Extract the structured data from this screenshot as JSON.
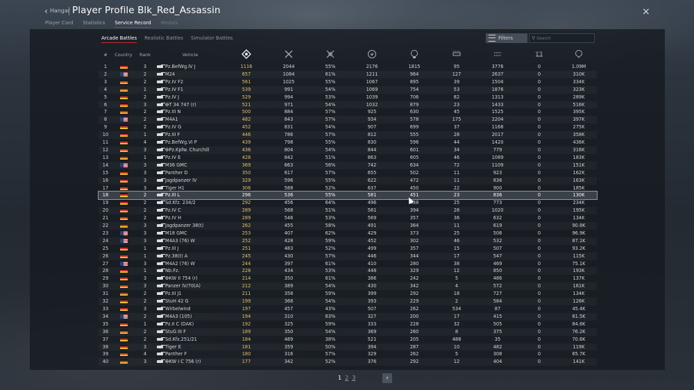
{
  "header": {
    "back_label": "Hangar",
    "title": "Player Profile Blk_Red_Assassin",
    "close_glyph": "×"
  },
  "tabs": [
    {
      "label": "Player Card",
      "state": "normal"
    },
    {
      "label": "Statistics",
      "state": "normal"
    },
    {
      "label": "Service Record",
      "state": "active"
    },
    {
      "label": "Medals",
      "state": "dim"
    }
  ],
  "subtabs": [
    {
      "label": "Arcade Battles",
      "state": "active"
    },
    {
      "label": "Realistic Battles",
      "state": "normal"
    },
    {
      "label": "Simulator Battles",
      "state": "normal"
    }
  ],
  "toolbar": {
    "filters_label": "Filters",
    "search_placeholder": "Search"
  },
  "table": {
    "headers": {
      "num": "#",
      "country": "Country",
      "rank": "Rank",
      "vehicle": "Vehicle"
    },
    "icon_columns": [
      "score-icon",
      "battles-icon",
      "victories-percent-icon",
      "respawns-icon",
      "deaths-icon",
      "ground-kills-icon",
      "air-kills-icon",
      "naval-kills-icon",
      "research-points-icon"
    ],
    "selected_row": 18,
    "rows": [
      {
        "n": "1",
        "c": "de",
        "r": "3",
        "v": "Pz.BefWg.IV J",
        "s": "1116",
        "b": "2044",
        "w": "55%",
        "res": "2176",
        "d": "1815",
        "a": "95",
        "g": "3776",
        "nv": "0",
        "rp": "1.09M"
      },
      {
        "n": "2",
        "c": "us",
        "r": "2",
        "v": "M24",
        "s": "657",
        "b": "1084",
        "w": "61%",
        "res": "1211",
        "d": "964",
        "a": "127",
        "g": "2637",
        "nv": "0",
        "rp": "310K"
      },
      {
        "n": "3",
        "c": "de",
        "r": "2",
        "v": "Pz.IV F2",
        "s": "561",
        "b": "1025",
        "w": "55%",
        "res": "1067",
        "d": "895",
        "a": "39",
        "g": "1504",
        "nv": "0",
        "rp": "334K"
      },
      {
        "n": "4",
        "c": "de",
        "r": "1",
        "v": "Pz.IV F1",
        "s": "539",
        "b": "991",
        "w": "54%",
        "res": "1069",
        "d": "754",
        "a": "53",
        "g": "1876",
        "nv": "0",
        "rp": "323K"
      },
      {
        "n": "5",
        "c": "de",
        "r": "2",
        "v": "Pz.IV J",
        "s": "529",
        "b": "994",
        "w": "53%",
        "res": "1039",
        "d": "706",
        "a": "82",
        "g": "1313",
        "nv": "0",
        "rp": "289K"
      },
      {
        "n": "6",
        "c": "de",
        "r": "3",
        "v": "✠T 34 747 (r)",
        "s": "521",
        "b": "971",
        "w": "54%",
        "res": "1032",
        "d": "879",
        "a": "23",
        "g": "1433",
        "nv": "0",
        "rp": "516K"
      },
      {
        "n": "7",
        "c": "de",
        "r": "2",
        "v": "Pz.III N",
        "s": "500",
        "b": "884",
        "w": "57%",
        "res": "925",
        "d": "630",
        "a": "45",
        "g": "1525",
        "nv": "0",
        "rp": "395K"
      },
      {
        "n": "8",
        "c": "us",
        "r": "2",
        "v": "M4A1",
        "s": "482",
        "b": "843",
        "w": "57%",
        "res": "934",
        "d": "578",
        "a": "175",
        "g": "2204",
        "nv": "0",
        "rp": "397K"
      },
      {
        "n": "9",
        "c": "de",
        "r": "2",
        "v": "Pz.IV G",
        "s": "452",
        "b": "831",
        "w": "54%",
        "res": "907",
        "d": "699",
        "a": "37",
        "g": "1168",
        "nv": "0",
        "rp": "275K"
      },
      {
        "n": "10",
        "c": "de",
        "r": "1",
        "v": "Pz.III F",
        "s": "446",
        "b": "786",
        "w": "57%",
        "res": "812",
        "d": "555",
        "a": "28",
        "g": "2017",
        "nv": "0",
        "rp": "358K"
      },
      {
        "n": "11",
        "c": "de",
        "r": "4",
        "v": "Pz.BefWg.VI P",
        "s": "439",
        "b": "798",
        "w": "55%",
        "res": "830",
        "d": "596",
        "a": "44",
        "g": "1420",
        "nv": "0",
        "rp": "436K"
      },
      {
        "n": "12",
        "c": "de",
        "r": "3",
        "v": "✠Pz.Kpfw. Churchill",
        "s": "436",
        "b": "804",
        "w": "54%",
        "res": "844",
        "d": "601",
        "a": "34",
        "g": "779",
        "nv": "0",
        "rp": "316K"
      },
      {
        "n": "13",
        "c": "de",
        "r": "1",
        "v": "Pz.IV E",
        "s": "428",
        "b": "842",
        "w": "51%",
        "res": "863",
        "d": "605",
        "a": "46",
        "g": "1089",
        "nv": "0",
        "rp": "183K"
      },
      {
        "n": "14",
        "c": "us",
        "r": "3",
        "v": "M36 GMC",
        "s": "369",
        "b": "663",
        "w": "56%",
        "res": "742",
        "d": "634",
        "a": "72",
        "g": "1109",
        "nv": "0",
        "rp": "151K"
      },
      {
        "n": "15",
        "c": "de",
        "r": "3",
        "v": "Panther D",
        "s": "350",
        "b": "617",
        "w": "57%",
        "res": "655",
        "d": "502",
        "a": "11",
        "g": "923",
        "nv": "0",
        "rp": "162K"
      },
      {
        "n": "16",
        "c": "de",
        "r": "3",
        "v": "Jagdpanzer IV",
        "s": "329",
        "b": "596",
        "w": "55%",
        "res": "622",
        "d": "472",
        "a": "11",
        "g": "836",
        "nv": "0",
        "rp": "163K"
      },
      {
        "n": "17",
        "c": "de",
        "r": "3",
        "v": "Tiger H1",
        "s": "306",
        "b": "588",
        "w": "52%",
        "res": "637",
        "d": "450",
        "a": "22",
        "g": "900",
        "nv": "0",
        "rp": "185K"
      },
      {
        "n": "18",
        "c": "de",
        "r": "2",
        "v": "Pz.III L",
        "s": "296",
        "b": "536",
        "w": "55%",
        "res": "581",
        "d": "451",
        "a": "23",
        "g": "836",
        "nv": "0",
        "rp": "130K"
      },
      {
        "n": "19",
        "c": "de",
        "r": "2",
        "v": "Sd.Kfz. 234/2",
        "s": "292",
        "b": "456",
        "w": "64%",
        "res": "496",
        "d": "438",
        "a": "25",
        "g": "773",
        "nv": "0",
        "rp": "234K"
      },
      {
        "n": "20",
        "c": "de",
        "r": "2",
        "v": "Pz.IV C",
        "s": "289",
        "b": "568",
        "w": "51%",
        "res": "581",
        "d": "394",
        "a": "26",
        "g": "1020",
        "nv": "0",
        "rp": "195K"
      },
      {
        "n": "21",
        "c": "de",
        "r": "2",
        "v": "Pz.IV H",
        "s": "289",
        "b": "546",
        "w": "53%",
        "res": "569",
        "d": "357",
        "a": "36",
        "g": "632",
        "nv": "0",
        "rp": "134K"
      },
      {
        "n": "22",
        "c": "de",
        "r": "3",
        "v": "Jagdpanzer 38(t)",
        "s": "262",
        "b": "455",
        "w": "58%",
        "res": "491",
        "d": "364",
        "a": "11",
        "g": "619",
        "nv": "0",
        "rp": "90.8K"
      },
      {
        "n": "23",
        "c": "us",
        "r": "3",
        "v": "M18 GMC",
        "s": "253",
        "b": "407",
        "w": "62%",
        "res": "429",
        "d": "373",
        "a": "25",
        "g": "506",
        "nv": "0",
        "rp": "96.9K"
      },
      {
        "n": "24",
        "c": "us",
        "r": "3",
        "v": "M4A3 (76) W",
        "s": "252",
        "b": "428",
        "w": "59%",
        "res": "452",
        "d": "302",
        "a": "46",
        "g": "532",
        "nv": "0",
        "rp": "87.1K"
      },
      {
        "n": "25",
        "c": "de",
        "r": "1",
        "v": "Pz.III J",
        "s": "251",
        "b": "483",
        "w": "52%",
        "res": "499",
        "d": "357",
        "a": "15",
        "g": "507",
        "nv": "0",
        "rp": "93.2K"
      },
      {
        "n": "26",
        "c": "de",
        "r": "1",
        "v": "Pz.38(t) A",
        "s": "245",
        "b": "430",
        "w": "57%",
        "res": "446",
        "d": "344",
        "a": "17",
        "g": "547",
        "nv": "0",
        "rp": "115K"
      },
      {
        "n": "27",
        "c": "us",
        "r": "3",
        "v": "M4A2 (76) W",
        "s": "244",
        "b": "397",
        "w": "61%",
        "res": "410",
        "d": "280",
        "a": "38",
        "g": "469",
        "nv": "0",
        "rp": "75.1K"
      },
      {
        "n": "28",
        "c": "de",
        "r": "1",
        "v": "Nb.Fz.",
        "s": "228",
        "b": "434",
        "w": "53%",
        "res": "448",
        "d": "329",
        "a": "12",
        "g": "850",
        "nv": "0",
        "rp": "193K"
      },
      {
        "n": "29",
        "c": "de",
        "r": "3",
        "v": "✠KW II 754 (r)",
        "s": "214",
        "b": "350",
        "w": "61%",
        "res": "386",
        "d": "242",
        "a": "5",
        "g": "486",
        "nv": "0",
        "rp": "137K"
      },
      {
        "n": "30",
        "c": "de",
        "r": "3",
        "v": "Panzer IV/70(A)",
        "s": "212",
        "b": "389",
        "w": "54%",
        "res": "430",
        "d": "342",
        "a": "4",
        "g": "572",
        "nv": "0",
        "rp": "161K"
      },
      {
        "n": "31",
        "c": "de",
        "r": "2",
        "v": "Pz.III J1",
        "s": "211",
        "b": "358",
        "w": "59%",
        "res": "399",
        "d": "292",
        "a": "18",
        "g": "727",
        "nv": "0",
        "rp": "134K"
      },
      {
        "n": "32",
        "c": "de",
        "r": "2",
        "v": "StuH 42 G",
        "s": "199",
        "b": "368",
        "w": "54%",
        "res": "393",
        "d": "229",
        "a": "2",
        "g": "584",
        "nv": "0",
        "rp": "126K"
      },
      {
        "n": "33",
        "c": "de",
        "r": "3",
        "v": "Wirbelwind",
        "s": "197",
        "b": "457",
        "w": "43%",
        "res": "507",
        "d": "262",
        "a": "534",
        "g": "87",
        "nv": "0",
        "rp": "45.4K"
      },
      {
        "n": "34",
        "c": "us",
        "r": "2",
        "v": "M4A3 (105)",
        "s": "194",
        "b": "310",
        "w": "63%",
        "res": "327",
        "d": "200",
        "a": "17",
        "g": "415",
        "nv": "0",
        "rp": "61.5K"
      },
      {
        "n": "35",
        "c": "de",
        "r": "1",
        "v": "Pz.II C (DAK)",
        "s": "192",
        "b": "325",
        "w": "59%",
        "res": "333",
        "d": "228",
        "a": "32",
        "g": "505",
        "nv": "0",
        "rp": "84.6K"
      },
      {
        "n": "36",
        "c": "de",
        "r": "2",
        "v": "StuG III F",
        "s": "189",
        "b": "350",
        "w": "54%",
        "res": "369",
        "d": "260",
        "a": "8",
        "g": "375",
        "nv": "0",
        "rp": "76.2K"
      },
      {
        "n": "37",
        "c": "de",
        "r": "2",
        "v": "Sd.Kfz.251/21",
        "s": "184",
        "b": "489",
        "w": "38%",
        "res": "521",
        "d": "205",
        "a": "488",
        "g": "35",
        "nv": "0",
        "rp": "70.6K"
      },
      {
        "n": "38",
        "c": "de",
        "r": "3",
        "v": "Tiger E",
        "s": "181",
        "b": "359",
        "w": "50%",
        "res": "394",
        "d": "287",
        "a": "10",
        "g": "482",
        "nv": "0",
        "rp": "119K"
      },
      {
        "n": "39",
        "c": "de",
        "r": "4",
        "v": "Panther F",
        "s": "180",
        "b": "316",
        "w": "57%",
        "res": "329",
        "d": "262",
        "a": "5",
        "g": "308",
        "nv": "0",
        "rp": "65.7K"
      },
      {
        "n": "40",
        "c": "de",
        "r": "3",
        "v": "✠KW I C 756 (r)",
        "s": "177",
        "b": "342",
        "w": "52%",
        "res": "376",
        "d": "292",
        "a": "12",
        "g": "404",
        "nv": "0",
        "rp": "141K"
      }
    ]
  },
  "pagination": {
    "current": "1",
    "pages": [
      "2",
      "3"
    ],
    "next_glyph": "›"
  }
}
